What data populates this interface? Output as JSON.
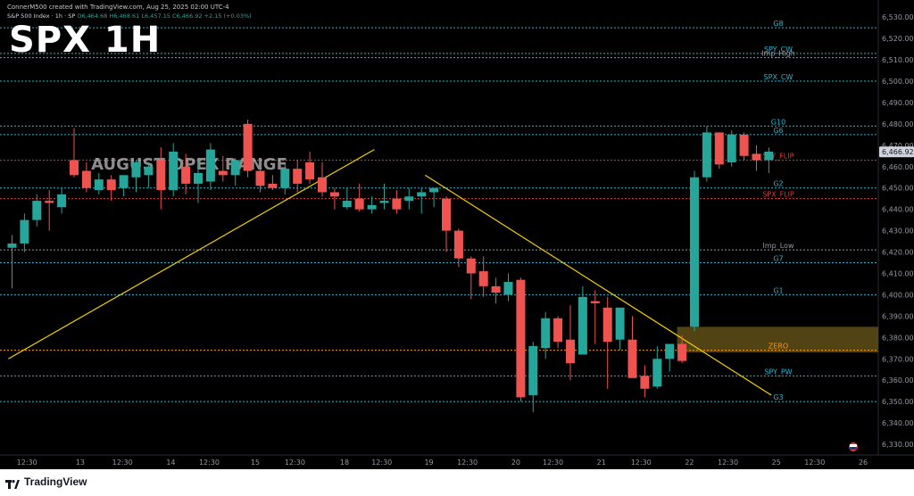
{
  "header": {
    "creator_line": "ConnerM500 created with TradingView.com, Aug 25, 2025 02:00 UTC-4",
    "instrument": "S&P 500 Index · 1h · SP",
    "ohlc": "O6,464.68 H6,468.61 L6,457.15 C6,466.92 +2.15 (+0.03%)",
    "chart_title": "SPX 1H",
    "watermark": "AUGUST OPEX RANGE"
  },
  "footer": {
    "brand": "TradingView",
    "logo_icon": "tradingview-logo-icon"
  },
  "colors": {
    "background": "#000000",
    "up": "#26a69a",
    "down": "#ef5350",
    "level_cyan": "#29b6d1",
    "level_red": "#e53935",
    "level_orange": "#ff9800",
    "trendline": "#f0d000",
    "zone": "#5a4a16",
    "axis_text": "#9598a1"
  },
  "chart_data": {
    "type": "candlestick",
    "title": "SPX 1H",
    "ylim": [
      6325,
      6538
    ],
    "y_ticks": [
      6330,
      6340,
      6350,
      6360,
      6370,
      6380,
      6390,
      6400,
      6410,
      6420,
      6430,
      6440,
      6450,
      6460,
      6470,
      6480,
      6490,
      6500,
      6510,
      6520,
      6530
    ],
    "y_tick_labels": [
      "6,330.00",
      "6,340.00",
      "6,350.00",
      "6,360.00",
      "6,370.00",
      "6,380.00",
      "6,390.00",
      "6,400.00",
      "6,410.00",
      "6,420.00",
      "6,430.00",
      "6,440.00",
      "6,450.00",
      "6,460.00",
      "6,470.00",
      "6,480.00",
      "6,490.00",
      "6,500.00",
      "6,510.00",
      "6,520.00",
      "6,530.00"
    ],
    "last_price": "6,466.92",
    "last_price_value": 6466.92,
    "x_labels": [
      {
        "label": "12:30",
        "i": 1.2
      },
      {
        "label": "13",
        "i": 5.5
      },
      {
        "label": "12:30",
        "i": 8.9
      },
      {
        "label": "14",
        "i": 12.8
      },
      {
        "label": "12:30",
        "i": 15.9
      },
      {
        "label": "15",
        "i": 19.6
      },
      {
        "label": "12:30",
        "i": 22.8
      },
      {
        "label": "18",
        "i": 26.8
      },
      {
        "label": "12:30",
        "i": 29.8
      },
      {
        "label": "19",
        "i": 33.6
      },
      {
        "label": "12:30",
        "i": 36.7
      },
      {
        "label": "20",
        "i": 40.6
      },
      {
        "label": "12:30",
        "i": 43.6
      },
      {
        "label": "21",
        "i": 47.5
      },
      {
        "label": "12:30",
        "i": 50.7
      },
      {
        "label": "22",
        "i": 54.6
      },
      {
        "label": "12:30",
        "i": 57.7
      },
      {
        "label": "25",
        "i": 61.6
      },
      {
        "label": "12:30",
        "i": 64.7
      },
      {
        "label": "26",
        "i": 68.6
      }
    ],
    "candles": [
      {
        "o": 6422,
        "h": 6428,
        "l": 6403,
        "c": 6424
      },
      {
        "o": 6424,
        "h": 6438,
        "l": 6420,
        "c": 6435
      },
      {
        "o": 6435,
        "h": 6447,
        "l": 6432,
        "c": 6444
      },
      {
        "o": 6444,
        "h": 6449,
        "l": 6430,
        "c": 6443
      },
      {
        "o": 6441,
        "h": 6450,
        "l": 6438,
        "c": 6447
      },
      {
        "o": 6463,
        "h": 6478,
        "l": 6455,
        "c": 6456
      },
      {
        "o": 6458,
        "h": 6462,
        "l": 6448,
        "c": 6450
      },
      {
        "o": 6449,
        "h": 6457,
        "l": 6447,
        "c": 6454
      },
      {
        "o": 6454,
        "h": 6456,
        "l": 6444,
        "c": 6449
      },
      {
        "o": 6450,
        "h": 6456,
        "l": 6446,
        "c": 6456
      },
      {
        "o": 6455,
        "h": 6463,
        "l": 6448,
        "c": 6462
      },
      {
        "o": 6456,
        "h": 6462,
        "l": 6450,
        "c": 6460
      },
      {
        "o": 6463,
        "h": 6469,
        "l": 6440,
        "c": 6449
      },
      {
        "o": 6449,
        "h": 6471,
        "l": 6446,
        "c": 6467
      },
      {
        "o": 6460,
        "h": 6466,
        "l": 6447,
        "c": 6452
      },
      {
        "o": 6452,
        "h": 6463,
        "l": 6443,
        "c": 6457
      },
      {
        "o": 6453,
        "h": 6471,
        "l": 6449,
        "c": 6468
      },
      {
        "o": 6458,
        "h": 6465,
        "l": 6453,
        "c": 6456
      },
      {
        "o": 6456,
        "h": 6464,
        "l": 6451,
        "c": 6463
      },
      {
        "o": 6480,
        "h": 6482,
        "l": 6455,
        "c": 6458
      },
      {
        "o": 6458,
        "h": 6463,
        "l": 6448,
        "c": 6451
      },
      {
        "o": 6452,
        "h": 6456,
        "l": 6449,
        "c": 6450
      },
      {
        "o": 6450,
        "h": 6461,
        "l": 6447,
        "c": 6459
      },
      {
        "o": 6459,
        "h": 6463,
        "l": 6448,
        "c": 6452
      },
      {
        "o": 6462,
        "h": 6467,
        "l": 6452,
        "c": 6454
      },
      {
        "o": 6455,
        "h": 6462,
        "l": 6446,
        "c": 6448
      },
      {
        "o": 6448,
        "h": 6450,
        "l": 6440,
        "c": 6446
      },
      {
        "o": 6441,
        "h": 6450,
        "l": 6440,
        "c": 6444
      },
      {
        "o": 6445,
        "h": 6452,
        "l": 6439,
        "c": 6440
      },
      {
        "o": 6440,
        "h": 6446,
        "l": 6438,
        "c": 6442
      },
      {
        "o": 6443,
        "h": 6452,
        "l": 6440,
        "c": 6444
      },
      {
        "o": 6445,
        "h": 6449,
        "l": 6438,
        "c": 6440
      },
      {
        "o": 6444,
        "h": 6450,
        "l": 6440,
        "c": 6446
      },
      {
        "o": 6446,
        "h": 6450,
        "l": 6438,
        "c": 6448
      },
      {
        "o": 6448,
        "h": 6450,
        "l": 6441,
        "c": 6450
      },
      {
        "o": 6445,
        "h": 6446,
        "l": 6420,
        "c": 6430
      },
      {
        "o": 6430,
        "h": 6431,
        "l": 6413,
        "c": 6417
      },
      {
        "o": 6417,
        "h": 6418,
        "l": 6398,
        "c": 6410
      },
      {
        "o": 6411,
        "h": 6418,
        "l": 6399,
        "c": 6404
      },
      {
        "o": 6404,
        "h": 6408,
        "l": 6396,
        "c": 6401
      },
      {
        "o": 6400,
        "h": 6410,
        "l": 6397,
        "c": 6406
      },
      {
        "o": 6407,
        "h": 6408,
        "l": 6350,
        "c": 6352
      },
      {
        "o": 6353,
        "h": 6378,
        "l": 6345,
        "c": 6376
      },
      {
        "o": 6375,
        "h": 6392,
        "l": 6370,
        "c": 6389
      },
      {
        "o": 6389,
        "h": 6390,
        "l": 6375,
        "c": 6378
      },
      {
        "o": 6379,
        "h": 6395,
        "l": 6360,
        "c": 6368
      },
      {
        "o": 6372,
        "h": 6404,
        "l": 6372,
        "c": 6399
      },
      {
        "o": 6397,
        "h": 6402,
        "l": 6377,
        "c": 6396
      },
      {
        "o": 6394,
        "h": 6399,
        "l": 6356,
        "c": 6378
      },
      {
        "o": 6379,
        "h": 6393,
        "l": 6374,
        "c": 6394
      },
      {
        "o": 6379,
        "h": 6390,
        "l": 6362,
        "c": 6361
      },
      {
        "o": 6362,
        "h": 6367,
        "l": 6352,
        "c": 6356
      },
      {
        "o": 6357,
        "h": 6376,
        "l": 6356,
        "c": 6370
      },
      {
        "o": 6370,
        "h": 6377,
        "l": 6364,
        "c": 6377
      },
      {
        "o": 6377,
        "h": 6381,
        "l": 6368,
        "c": 6369
      },
      {
        "o": 6385,
        "h": 6458,
        "l": 6383,
        "c": 6455
      },
      {
        "o": 6455,
        "h": 6479,
        "l": 6453,
        "c": 6476
      },
      {
        "o": 6476,
        "h": 6476,
        "l": 6459,
        "c": 6461
      },
      {
        "o": 6462,
        "h": 6477,
        "l": 6460,
        "c": 6475
      },
      {
        "o": 6475,
        "h": 6476,
        "l": 6463,
        "c": 6465
      },
      {
        "o": 6466,
        "h": 6470,
        "l": 6458,
        "c": 6463
      },
      {
        "o": 6463,
        "h": 6469,
        "l": 6457,
        "c": 6467
      }
    ],
    "levels": [
      {
        "label": "G8",
        "value": 6525,
        "color": "#29b6d1"
      },
      {
        "label": "SPY_CW",
        "value": 6513,
        "color": "#29b6d1"
      },
      {
        "label": "Imp_High",
        "value": 6511,
        "color": "#9598a1"
      },
      {
        "label": "SPX_CW",
        "value": 6500,
        "color": "#29b6d1"
      },
      {
        "label": "G10",
        "value": 6479,
        "color": "#29b6d1"
      },
      {
        "label": "G6",
        "value": 6475,
        "color": "#29b6d1"
      },
      {
        "label": "SPY_FLIP",
        "value": 6463,
        "color": "#e53935"
      },
      {
        "label": "G2",
        "value": 6450,
        "color": "#29b6d1"
      },
      {
        "label": "SPX_FLIP",
        "value": 6445,
        "color": "#e53935"
      },
      {
        "label": "Imp_Low",
        "value": 6421,
        "color": "#9598a1"
      },
      {
        "label": "G7",
        "value": 6415,
        "color": "#29b6d1"
      },
      {
        "label": "G1",
        "value": 6400,
        "color": "#29b6d1"
      },
      {
        "label": "ZERO",
        "value": 6374,
        "color": "#ff9800"
      },
      {
        "label": "SPY_PW",
        "value": 6362,
        "color": "#29b6d1"
      },
      {
        "label": "G3",
        "value": 6350,
        "color": "#29b6d1"
      }
    ],
    "zone": {
      "top": 6385,
      "bottom": 6373,
      "from_i": 53.6
    },
    "trendlines": [
      {
        "i1": -0.3,
        "v1": 6370,
        "i2": 29.2,
        "v2": 6468
      },
      {
        "i1": 33.3,
        "v1": 6456,
        "i2": 61.2,
        "v2": 6353
      }
    ]
  }
}
